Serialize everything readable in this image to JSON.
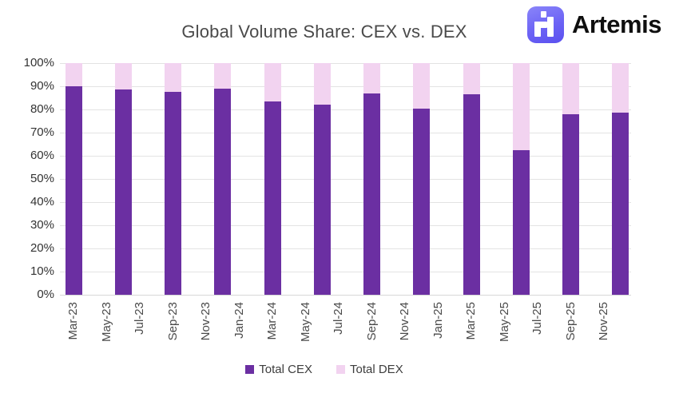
{
  "header": {
    "title": "Global Volume Share: CEX vs. DEX",
    "brand": {
      "name": "Artemis",
      "icon": "artemis-pixel-a-icon",
      "icon_color": "#6C63F5"
    }
  },
  "chart_data": {
    "type": "bar",
    "stacked": true,
    "normalized_to_100_percent": true,
    "title": "Global Volume Share: CEX vs. DEX",
    "categories": [
      "Mar-23",
      "Jun-23",
      "Sep-23",
      "Dec-23",
      "Mar-24",
      "Jun-24",
      "Sep-24",
      "Dec-24",
      "Mar-25",
      "Jun-25",
      "Sep-25",
      "Dec-25"
    ],
    "series": [
      {
        "name": "Total CEX",
        "color": "#6B2FA2",
        "values": [
          90,
          88.5,
          87.5,
          89,
          83.5,
          82,
          87,
          80.5,
          86.5,
          62.5,
          78,
          78.5
        ]
      },
      {
        "name": "Total DEX",
        "color": "#F2D3F0",
        "values": [
          10,
          11.5,
          12.5,
          11,
          16.5,
          18,
          13,
          19.5,
          13.5,
          37.5,
          22,
          21.5
        ]
      }
    ],
    "x_axis": {
      "tick_labels": [
        "Mar-23",
        "May-23",
        "Jul-23",
        "Sep-23",
        "Nov-23",
        "Jan-24",
        "Mar-24",
        "May-24",
        "Jul-24",
        "Sep-24",
        "Nov-24",
        "Jan-25",
        "Mar-25",
        "May-25",
        "Jul-25",
        "Sep-25",
        "Nov-25"
      ],
      "label_rotation_deg": 90
    },
    "y_axis": {
      "tick_labels": [
        "0%",
        "10%",
        "20%",
        "30%",
        "40%",
        "50%",
        "60%",
        "70%",
        "80%",
        "90%",
        "100%"
      ],
      "min": 0,
      "max": 100,
      "unit": "%"
    },
    "grid": "horizontal",
    "legend": {
      "position": "bottom",
      "entries": [
        "Total CEX",
        "Total DEX"
      ]
    }
  },
  "colors": {
    "cex_purple": "#6B2FA2",
    "dex_pink": "#F2D3F0",
    "gridline": "#E3E3E3",
    "title_text": "#4A4A4A",
    "axis_text": "#3F3F3F",
    "brand_indigo": "#6C63F5"
  }
}
